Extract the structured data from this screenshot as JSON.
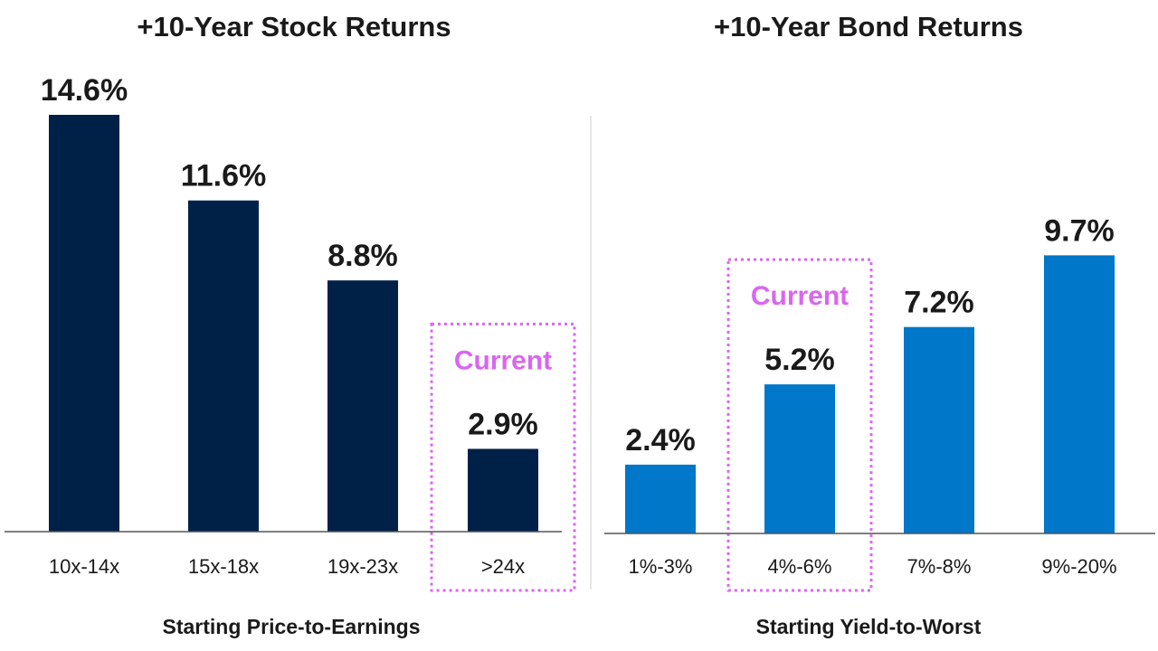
{
  "chart_data": [
    {
      "type": "bar",
      "title": "+10-Year Stock Returns",
      "xlabel": "Starting Price-to-Earnings",
      "ylabel": "",
      "categories": [
        "10x-14x",
        "15x-18x",
        "19x-23x",
        ">24x"
      ],
      "values": [
        14.6,
        11.6,
        8.8,
        2.9
      ],
      "value_labels": [
        "14.6%",
        "11.6%",
        "8.8%",
        "2.9%"
      ],
      "ylim": [
        0,
        14.6
      ],
      "bar_color": "#002147",
      "highlight": {
        "category": ">24x",
        "label": "Current",
        "color": "#d966f0"
      }
    },
    {
      "type": "bar",
      "title": "+10-Year Bond Returns",
      "xlabel": "Starting Yield-to-Worst",
      "ylabel": "",
      "categories": [
        "1%-3%",
        "4%-6%",
        "7%-8%",
        "9%-20%"
      ],
      "values": [
        2.4,
        5.2,
        7.2,
        9.7
      ],
      "value_labels": [
        "2.4%",
        "5.2%",
        "7.2%",
        "9.7%"
      ],
      "ylim": [
        0,
        14.6
      ],
      "bar_color": "#0077c8",
      "highlight": {
        "category": "4%-6%",
        "label": "Current",
        "color": "#d966f0"
      }
    }
  ],
  "colors": {
    "text": "#1a1a1a",
    "axis": "#555555",
    "divider": "#cccccc"
  }
}
